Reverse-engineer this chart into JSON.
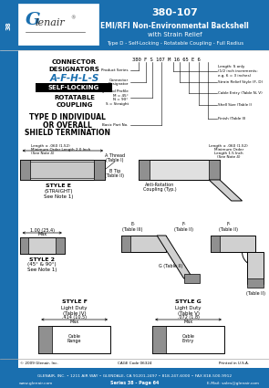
{
  "part_number": "380-107",
  "title_line1": "EMI/RFI Non-Environmental Backshell",
  "title_line2": "with Strain Relief",
  "title_line3": "Type D - Self-Locking - Rotatable Coupling - Full Radius",
  "series_page": "Series 38 - Page 64",
  "address": "GLENAIR, INC. • 1211 AIR WAY • GLENDALE, CA 91201-2497 • 818-247-6000 • FAX 818-500-9912",
  "email": "E-Mail: sales@glenair.com",
  "website": "www.glenair.com",
  "blue_color": "#1a6faf",
  "copyright": "© 2009 Glenair, Inc.",
  "cage_code": "CAGE Code 06324",
  "printed": "Printed in U.S.A."
}
